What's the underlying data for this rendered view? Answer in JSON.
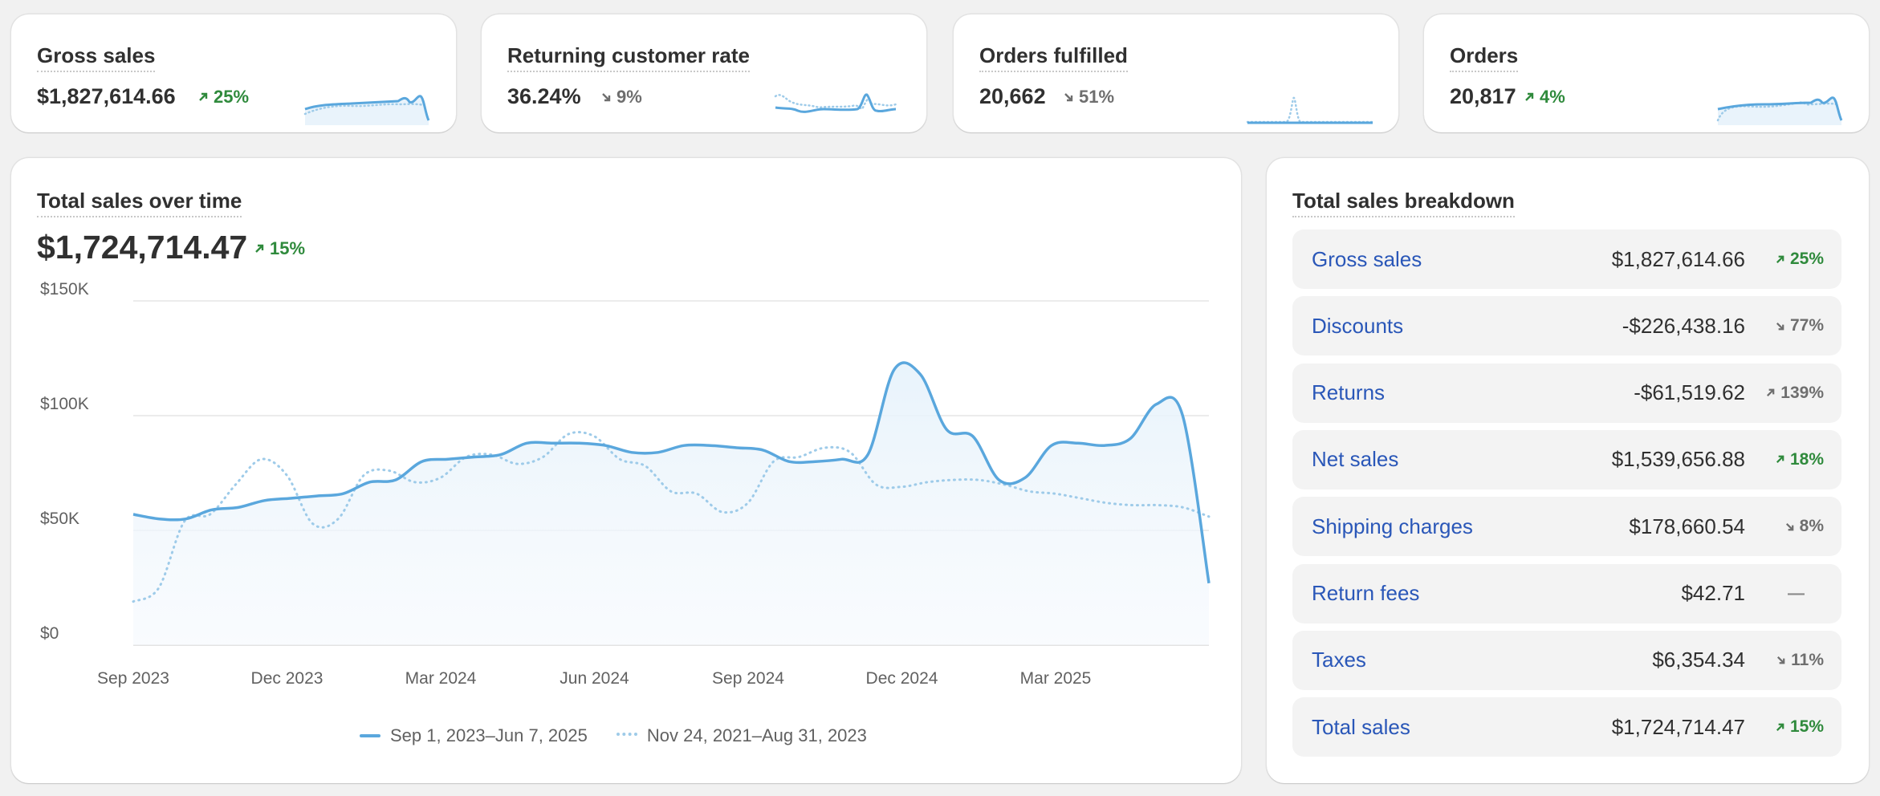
{
  "kpis": [
    {
      "title": "Gross sales",
      "value": "$1,827,614.66",
      "delta": "25%",
      "direction": "up"
    },
    {
      "title": "Returning customer rate",
      "value": "36.24%",
      "delta": "9%",
      "direction": "down"
    },
    {
      "title": "Orders fulfilled",
      "value": "20,662",
      "delta": "51%",
      "direction": "down"
    },
    {
      "title": "Orders",
      "value": "20,817",
      "delta": "4%",
      "direction": "up"
    }
  ],
  "sales_over_time": {
    "title": "Total sales over time",
    "total": "$1,724,714.47",
    "delta": "15%",
    "direction": "up",
    "legend": {
      "current": "Sep 1, 2023–Jun 7, 2025",
      "previous": "Nov 24, 2021–Aug 31, 2023"
    }
  },
  "chart_data": {
    "type": "line",
    "title": "Total sales over time",
    "y_tick_labels": [
      "$0",
      "$50K",
      "$100K",
      "$150K"
    ],
    "ylim": [
      0,
      150000
    ],
    "x_tick_labels": [
      "Sep 2023",
      "Dec 2023",
      "Mar 2024",
      "Jun 2024",
      "Sep 2024",
      "Dec 2024",
      "Mar 2025"
    ],
    "grid": true,
    "series": [
      {
        "name": "Sep 1, 2023–Jun 7, 2025",
        "style": "solid",
        "color": "#5aa7dd",
        "values": [
          57000,
          55000,
          55000,
          59000,
          60000,
          63000,
          64000,
          65000,
          66000,
          71000,
          72000,
          80000,
          81000,
          82000,
          83000,
          88000,
          88000,
          88000,
          87000,
          84000,
          84000,
          87000,
          87000,
          86000,
          85000,
          80000,
          80000,
          81000,
          83000,
          120000,
          118000,
          94000,
          91000,
          72000,
          73000,
          87000,
          88000,
          87000,
          90000,
          105000,
          100000,
          27000
        ]
      },
      {
        "name": "Nov 24, 2021–Aug 31, 2023",
        "style": "dotted",
        "color": "#9ecbe9",
        "values": [
          19000,
          25000,
          54000,
          57000,
          70000,
          81000,
          74000,
          53000,
          55000,
          74000,
          76000,
          71000,
          73000,
          82000,
          83000,
          79000,
          82000,
          92000,
          91000,
          81000,
          78000,
          67000,
          66000,
          58000,
          62000,
          80000,
          82000,
          86000,
          84000,
          70000,
          69000,
          71000,
          72000,
          72000,
          70000,
          67000,
          66000,
          64000,
          62000,
          61000,
          61000,
          60000,
          56000
        ]
      }
    ]
  },
  "breakdown": {
    "title": "Total sales breakdown",
    "rows": [
      {
        "label": "Gross sales",
        "value": "$1,827,614.66",
        "delta": "25%",
        "direction": "up"
      },
      {
        "label": "Discounts",
        "value": "-$226,438.16",
        "delta": "77%",
        "direction": "down"
      },
      {
        "label": "Returns",
        "value": "-$61,519.62",
        "delta": "139%",
        "direction": "up-neutral"
      },
      {
        "label": "Net sales",
        "value": "$1,539,656.88",
        "delta": "18%",
        "direction": "up"
      },
      {
        "label": "Shipping charges",
        "value": "$178,660.54",
        "delta": "8%",
        "direction": "down"
      },
      {
        "label": "Return fees",
        "value": "$42.71",
        "delta": "—",
        "direction": "none"
      },
      {
        "label": "Taxes",
        "value": "$6,354.34",
        "delta": "11%",
        "direction": "down"
      },
      {
        "label": "Total sales",
        "value": "$1,724,714.47",
        "delta": "15%",
        "direction": "up"
      }
    ]
  },
  "colors": {
    "accent_line": "#5aa7dd",
    "positive": "#2f8a3c",
    "link": "#2a57b8"
  }
}
